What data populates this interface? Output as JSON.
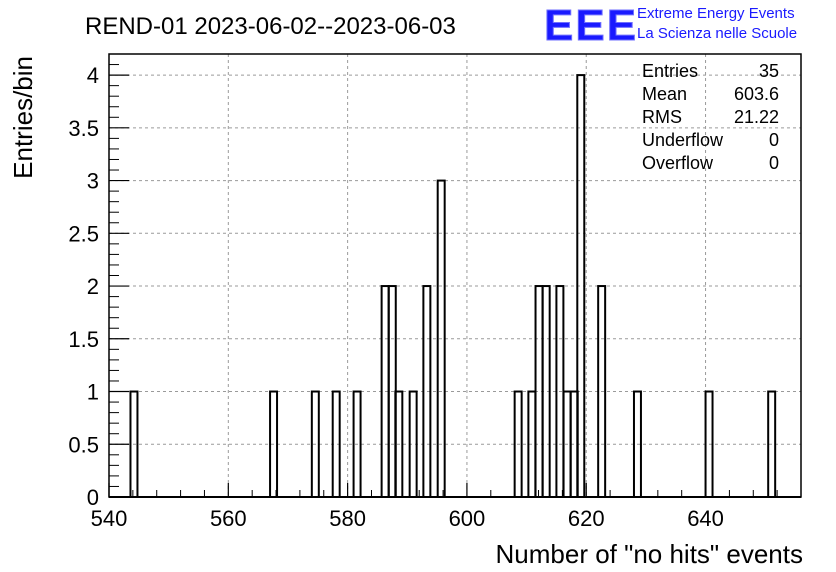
{
  "logo": {
    "mark": "EEE",
    "line1": "Extreme Energy Events",
    "line2": "La Scienza nelle Scuole",
    "color": "#1a1aff"
  },
  "stats": {
    "entries_label": "Entries",
    "entries_value": "35",
    "mean_label": "Mean",
    "mean_value": "603.6",
    "rms_label": "RMS",
    "rms_value": "21.22",
    "underflow_label": "Underflow",
    "underflow_value": "0",
    "overflow_label": "Overflow",
    "overflow_value": "0"
  },
  "chart_data": {
    "type": "bar",
    "histogram": true,
    "title": "REND-01 2023-06-02--2023-06-03",
    "xlabel": "Number of \"no hits\" events",
    "ylabel": "Entries/bin",
    "xlim": [
      540,
      656
    ],
    "ylim": [
      0,
      4.2
    ],
    "grid": true,
    "bin_width": 1.17,
    "x_ticks": [
      540,
      560,
      580,
      600,
      620,
      640
    ],
    "y_ticks": [
      0,
      0.5,
      1,
      1.5,
      2,
      2.5,
      3,
      3.5,
      4
    ],
    "y_tick_labels": [
      "0",
      "0.5",
      "1",
      "1.5",
      "2",
      "2.5",
      "3",
      "3.5",
      "4"
    ],
    "bins": [
      {
        "x": 543.6,
        "count": 1
      },
      {
        "x": 567.0,
        "count": 1
      },
      {
        "x": 574.0,
        "count": 1
      },
      {
        "x": 577.5,
        "count": 1
      },
      {
        "x": 581.0,
        "count": 1
      },
      {
        "x": 585.7,
        "count": 2
      },
      {
        "x": 586.9,
        "count": 2
      },
      {
        "x": 588.0,
        "count": 1
      },
      {
        "x": 590.4,
        "count": 1
      },
      {
        "x": 592.7,
        "count": 2
      },
      {
        "x": 595.1,
        "count": 3
      },
      {
        "x": 608.0,
        "count": 1
      },
      {
        "x": 610.3,
        "count": 1
      },
      {
        "x": 611.5,
        "count": 2
      },
      {
        "x": 612.7,
        "count": 2
      },
      {
        "x": 615.0,
        "count": 2
      },
      {
        "x": 616.2,
        "count": 1
      },
      {
        "x": 617.4,
        "count": 1
      },
      {
        "x": 618.5,
        "count": 4
      },
      {
        "x": 622.0,
        "count": 2
      },
      {
        "x": 628.0,
        "count": 1
      },
      {
        "x": 640.0,
        "count": 1
      },
      {
        "x": 650.5,
        "count": 1
      }
    ]
  }
}
